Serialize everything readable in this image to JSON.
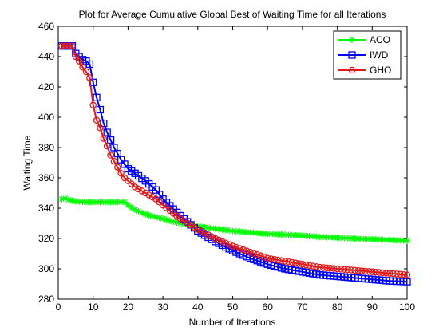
{
  "chart_data": {
    "type": "line",
    "title": "Plot for Average Cumulative Global Best of Waiting Time for all Iterations",
    "xlabel": "Number of Iterations",
    "ylabel": "Waiting Time",
    "xlim": [
      0,
      100
    ],
    "ylim": [
      280,
      460
    ],
    "xticks": [
      0,
      10,
      20,
      30,
      40,
      50,
      60,
      70,
      80,
      90,
      100
    ],
    "yticks": [
      280,
      300,
      320,
      340,
      360,
      380,
      400,
      420,
      440,
      460
    ],
    "grid": false,
    "legend_position": "top-right",
    "series": [
      {
        "name": "ACO",
        "color": "#00ff00",
        "marker": "star",
        "points": [
          [
            1,
            346
          ],
          [
            2,
            346.5
          ],
          [
            3,
            345.5
          ],
          [
            5,
            344.5
          ],
          [
            8,
            344
          ],
          [
            12,
            344
          ],
          [
            16,
            344
          ],
          [
            19,
            344
          ],
          [
            20,
            342
          ],
          [
            22,
            339
          ],
          [
            25,
            336
          ],
          [
            30,
            333
          ],
          [
            35,
            330
          ],
          [
            40,
            328
          ],
          [
            45,
            326.5
          ],
          [
            50,
            325
          ],
          [
            55,
            324
          ],
          [
            60,
            323
          ],
          [
            65,
            322.5
          ],
          [
            70,
            322
          ],
          [
            75,
            321
          ],
          [
            80,
            320.5
          ],
          [
            85,
            320
          ],
          [
            90,
            319.5
          ],
          [
            95,
            319
          ],
          [
            100,
            318.5
          ]
        ]
      },
      {
        "name": "IWD",
        "color": "#0000ff",
        "marker": "square",
        "points": [
          [
            1,
            447
          ],
          [
            4,
            447
          ],
          [
            5,
            442
          ],
          [
            6,
            440
          ],
          [
            7,
            438
          ],
          [
            8,
            437
          ],
          [
            9,
            435
          ],
          [
            10,
            423
          ],
          [
            11,
            413
          ],
          [
            12,
            405
          ],
          [
            13,
            396
          ],
          [
            14,
            390
          ],
          [
            15,
            385
          ],
          [
            16,
            380
          ],
          [
            17,
            376
          ],
          [
            18,
            372
          ],
          [
            19,
            369
          ],
          [
            20,
            366
          ],
          [
            22,
            363
          ],
          [
            25,
            358
          ],
          [
            28,
            352
          ],
          [
            30,
            346
          ],
          [
            35,
            335
          ],
          [
            40,
            325
          ],
          [
            45,
            318
          ],
          [
            50,
            312
          ],
          [
            55,
            307
          ],
          [
            60,
            303
          ],
          [
            65,
            300
          ],
          [
            70,
            298
          ],
          [
            75,
            296
          ],
          [
            80,
            295
          ],
          [
            85,
            294
          ],
          [
            90,
            293
          ],
          [
            95,
            292
          ],
          [
            100,
            291.5
          ]
        ]
      },
      {
        "name": "GHO",
        "color": "#e01b1b",
        "marker": "circle",
        "points": [
          [
            1,
            447
          ],
          [
            4,
            447
          ],
          [
            5,
            440
          ],
          [
            6,
            437
          ],
          [
            7,
            433
          ],
          [
            8,
            430
          ],
          [
            9,
            426
          ],
          [
            10,
            408
          ],
          [
            11,
            398
          ],
          [
            12,
            393
          ],
          [
            13,
            386
          ],
          [
            14,
            381
          ],
          [
            15,
            375
          ],
          [
            16,
            371
          ],
          [
            17,
            367
          ],
          [
            18,
            363
          ],
          [
            19,
            360
          ],
          [
            20,
            358
          ],
          [
            22,
            354
          ],
          [
            25,
            350
          ],
          [
            28,
            346
          ],
          [
            30,
            342
          ],
          [
            35,
            333
          ],
          [
            40,
            326
          ],
          [
            45,
            320
          ],
          [
            50,
            315
          ],
          [
            55,
            311
          ],
          [
            60,
            307
          ],
          [
            65,
            305
          ],
          [
            70,
            303
          ],
          [
            75,
            301
          ],
          [
            80,
            300
          ],
          [
            85,
            299
          ],
          [
            90,
            298
          ],
          [
            95,
            297
          ],
          [
            100,
            296
          ]
        ]
      }
    ]
  }
}
